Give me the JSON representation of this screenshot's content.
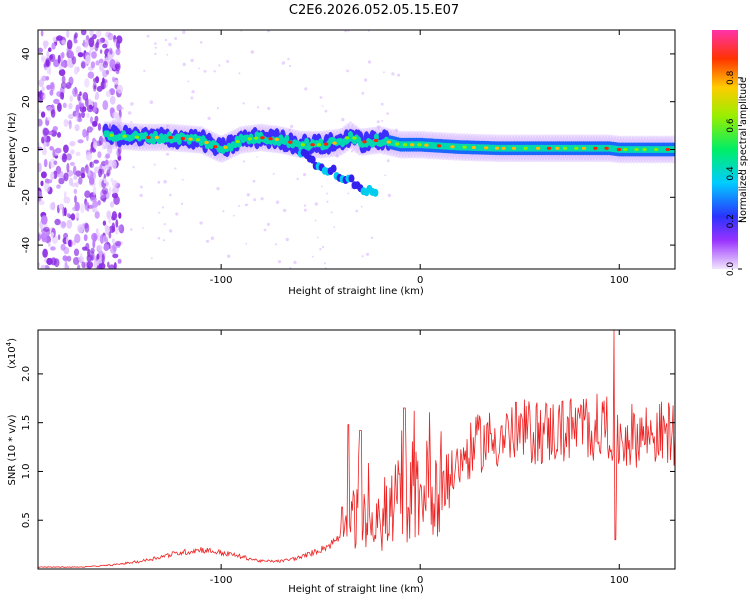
{
  "page": {
    "title": "C2E6.2026.052.05.15.E07"
  },
  "chart_data": [
    {
      "type": "heatmap",
      "title": "",
      "xlabel": "Height of straight line (km)",
      "ylabel": "Frequency (Hz)",
      "xlim": [
        -192,
        128
      ],
      "ylim": [
        -50,
        50
      ],
      "xticks": [
        -100,
        0,
        100
      ],
      "yticks": [
        -40,
        -20,
        0,
        20,
        40
      ],
      "colorbar": {
        "label": "Normalized spectral amplitude",
        "range": [
          0,
          1
        ],
        "ticks": [
          0.0,
          0.2,
          0.4,
          0.6,
          0.8
        ]
      },
      "ridge": {
        "x": [
          -155,
          -140,
          -125,
          -110,
          -100,
          -90,
          -80,
          -70,
          -60,
          -50,
          -40,
          -35,
          -30,
          -20,
          -10,
          0,
          20,
          40,
          60,
          80,
          95,
          100,
          128
        ],
        "y": [
          6,
          5,
          5,
          4,
          0,
          4,
          5,
          4,
          2,
          2,
          3,
          6,
          3,
          4,
          2,
          2,
          1,
          0.5,
          0.5,
          0.5,
          0.5,
          0,
          0
        ]
      }
    },
    {
      "type": "line",
      "title": "",
      "xlabel": "Height of straight line (km)",
      "ylabel": "SNR (10 * v/v)",
      "y_multiplier": "(x10",
      "y_multiplier_exp": "4",
      "xlim": [
        -192,
        128
      ],
      "ylim": [
        0,
        2.45
      ],
      "xticks": [
        -100,
        0,
        100
      ],
      "yticks": [
        0.5,
        1.0,
        1.5,
        2.0
      ],
      "envelope": {
        "x": [
          -192,
          -170,
          -155,
          -140,
          -125,
          -110,
          -95,
          -80,
          -70,
          -60,
          -50,
          -45,
          -40,
          -35,
          -30,
          -25,
          -20,
          -15,
          -10,
          -5,
          0,
          5,
          10,
          15,
          20,
          30,
          40,
          50,
          60,
          70,
          80,
          90,
          95,
          98,
          100,
          110,
          128
        ],
        "y": [
          0.02,
          0.02,
          0.04,
          0.08,
          0.15,
          0.2,
          0.15,
          0.08,
          0.08,
          0.12,
          0.2,
          0.25,
          0.35,
          0.55,
          0.5,
          0.45,
          0.45,
          0.6,
          0.75,
          0.7,
          0.8,
          0.85,
          0.9,
          0.95,
          1.1,
          1.3,
          1.35,
          1.4,
          1.4,
          1.42,
          1.45,
          1.45,
          1.5,
          1.2,
          1.35,
          1.38,
          1.4
        ]
      },
      "features": [
        {
          "x": -36,
          "y": 1.48
        },
        {
          "x": -30,
          "y": 1.42
        },
        {
          "x": -8,
          "y": 1.65
        },
        {
          "x": 97.5,
          "y": 2.45
        },
        {
          "x": 98,
          "y": 0.3
        }
      ]
    }
  ],
  "colors": {
    "line": "#ee2222",
    "frame": "#000000"
  }
}
